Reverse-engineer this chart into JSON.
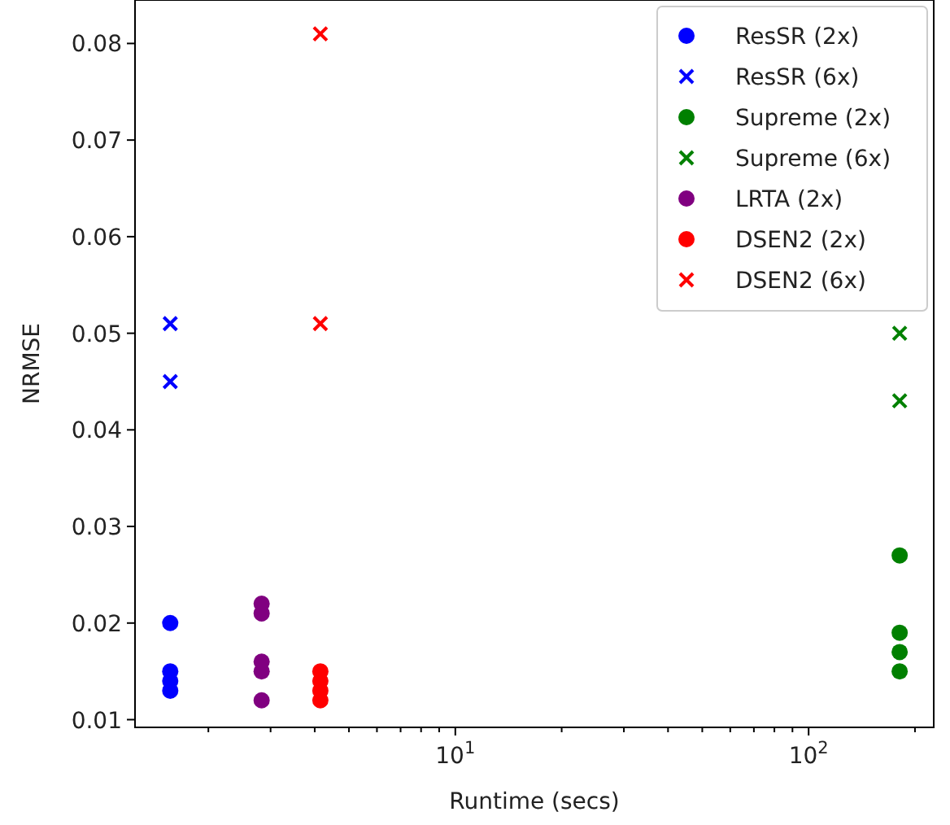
{
  "chart_data": {
    "type": "scatter",
    "xlabel": "Runtime (secs)",
    "ylabel": "NRMSE",
    "log": "x",
    "xlim": [
      1.24,
      226
    ],
    "ylim": [
      0.0092,
      0.0845
    ],
    "xticks": [
      {
        "value": 2,
        "label": null
      },
      {
        "value": 3,
        "label": null
      },
      {
        "value": 4,
        "label": null
      },
      {
        "value": 5,
        "label": null
      },
      {
        "value": 6,
        "label": null
      },
      {
        "value": 7,
        "label": null
      },
      {
        "value": 8,
        "label": null
      },
      {
        "value": 9,
        "label": null
      },
      {
        "value": 10,
        "label": "10$^{1}$"
      },
      {
        "value": 20,
        "label": null
      },
      {
        "value": 30,
        "label": null
      },
      {
        "value": 40,
        "label": null
      },
      {
        "value": 50,
        "label": null
      },
      {
        "value": 60,
        "label": null
      },
      {
        "value": 70,
        "label": null
      },
      {
        "value": 80,
        "label": null
      },
      {
        "value": 90,
        "label": null
      },
      {
        "value": 100,
        "label": "10$^{2}$"
      },
      {
        "value": 200,
        "label": null
      }
    ],
    "yticks": [
      {
        "value": 0.01,
        "label": "0.01"
      },
      {
        "value": 0.02,
        "label": "0.02"
      },
      {
        "value": 0.03,
        "label": "0.03"
      },
      {
        "value": 0.04,
        "label": "0.04"
      },
      {
        "value": 0.05,
        "label": "0.05"
      },
      {
        "value": 0.06,
        "label": "0.06"
      },
      {
        "value": 0.07,
        "label": "0.07"
      },
      {
        "value": 0.08,
        "label": "0.08"
      }
    ],
    "grid": false,
    "legend": "top right",
    "series": [
      {
        "name": "ResSR (2x)",
        "color": "#0000ff",
        "marker": "circle",
        "x": [
          1.56,
          1.56,
          1.56,
          1.56
        ],
        "values": [
          0.02,
          0.015,
          0.014,
          0.013
        ]
      },
      {
        "name": "ResSR (6x)",
        "color": "#0000ff",
        "marker": "cross",
        "x": [
          1.56,
          1.56
        ],
        "values": [
          0.051,
          0.045
        ]
      },
      {
        "name": "Supreme (2x)",
        "color": "#008000",
        "marker": "circle",
        "x": [
          181,
          181,
          181,
          181
        ],
        "values": [
          0.027,
          0.019,
          0.017,
          0.015
        ]
      },
      {
        "name": "Supreme (6x)",
        "color": "#008000",
        "marker": "cross",
        "x": [
          181,
          181
        ],
        "values": [
          0.05,
          0.043
        ]
      },
      {
        "name": "LRTA (2x)",
        "color": "#800080",
        "marker": "circle",
        "x": [
          2.83,
          2.83,
          2.83,
          2.83,
          2.83
        ],
        "values": [
          0.022,
          0.021,
          0.016,
          0.015,
          0.012
        ]
      },
      {
        "name": "DSEN2 (2x)",
        "color": "#ff0000",
        "marker": "circle",
        "x": [
          4.15,
          4.15,
          4.15,
          4.15
        ],
        "values": [
          0.015,
          0.014,
          0.013,
          0.012
        ]
      },
      {
        "name": "DSEN2 (6x)",
        "color": "#ff0000",
        "marker": "cross",
        "x": [
          4.15,
          4.15
        ],
        "values": [
          0.081,
          0.051
        ]
      }
    ]
  }
}
